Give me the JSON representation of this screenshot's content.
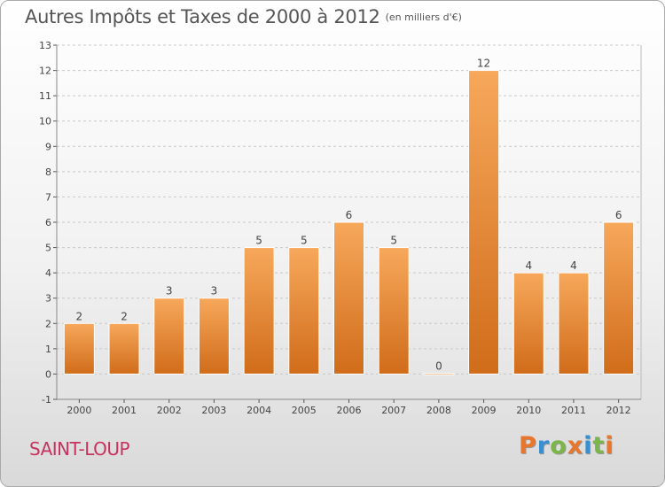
{
  "header": {
    "title": "Autres Impôts et Taxes de 2000 à 2012",
    "subtitle": "(en milliers d'€)"
  },
  "footer": {
    "city": "SAINT-LOUP",
    "brand_letters": [
      {
        "ch": "P",
        "color": "#e8762d"
      },
      {
        "ch": "r",
        "color": "#3a8fd1"
      },
      {
        "ch": "o",
        "color": "#7ab648"
      },
      {
        "ch": "x",
        "color": "#e8762d"
      },
      {
        "ch": "i",
        "color": "#3a8fd1"
      },
      {
        "ch": "t",
        "color": "#7ab648"
      },
      {
        "ch": "i",
        "color": "#e8762d"
      }
    ]
  },
  "chart_data": {
    "type": "bar",
    "title": "Autres Impôts et Taxes de 2000 à 2012",
    "subtitle": "(en milliers d'€)",
    "categories": [
      "2000",
      "2001",
      "2002",
      "2003",
      "2004",
      "2005",
      "2006",
      "2007",
      "2008",
      "2009",
      "2010",
      "2011",
      "2012"
    ],
    "values": [
      2,
      2,
      3,
      3,
      5,
      5,
      6,
      5,
      0,
      12,
      4,
      4,
      6
    ],
    "value_labels": [
      "2",
      "2",
      "3",
      "3",
      "5",
      "5",
      "6",
      "5",
      "0",
      "12",
      "4",
      "4",
      "6"
    ],
    "ylim": [
      -1,
      13
    ],
    "yticks": [
      -1,
      0,
      1,
      2,
      3,
      4,
      5,
      6,
      7,
      8,
      9,
      10,
      11,
      12,
      13
    ],
    "ytick_labels": [
      "-1",
      "0",
      "1",
      "2",
      "3",
      "4",
      "5",
      "6",
      "7",
      "8",
      "9",
      "10",
      "11",
      "12",
      "13"
    ],
    "grid": "horizontal dashed",
    "bar_color_top": "#f7a85b",
    "bar_color_bottom": "#d06c1a"
  }
}
